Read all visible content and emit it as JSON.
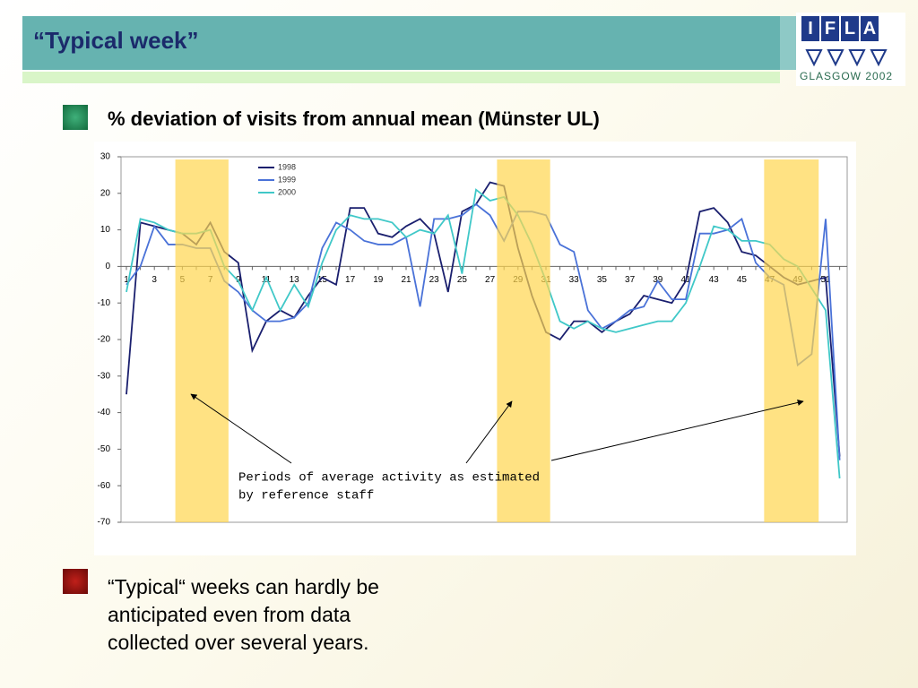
{
  "slide": {
    "title": "“Typical week”",
    "logo": {
      "letters": [
        "I",
        "F",
        "L",
        "A"
      ],
      "caption": "GLASGOW 2002"
    },
    "heading": "% deviation of visits from annual mean (Münster UL)",
    "note_lines": [
      "“Typical“ weeks can hardly be",
      "anticipated even from data",
      "collected over several years."
    ]
  },
  "chart_data": {
    "type": "line",
    "categories": [
      1,
      null,
      3,
      null,
      5,
      null,
      7,
      null,
      9,
      null,
      11,
      null,
      13,
      null,
      15,
      null,
      17,
      null,
      19,
      null,
      21,
      null,
      23,
      null,
      25,
      null,
      27,
      null,
      29,
      null,
      31,
      null,
      33,
      null,
      35,
      null,
      37,
      null,
      39,
      null,
      41,
      null,
      43,
      null,
      45,
      null,
      47,
      null,
      49,
      null,
      51,
      null
    ],
    "series": [
      {
        "name": "1998",
        "color": "#1a1f6e",
        "values": [
          -35,
          12,
          11,
          10,
          9,
          6,
          12,
          4,
          1,
          -23,
          -15,
          -12,
          -14,
          -8,
          -3,
          -5,
          16,
          16,
          9,
          8,
          11,
          13,
          9,
          -7,
          15,
          17,
          23,
          22,
          5,
          -8,
          -18,
          -20,
          -15,
          -15,
          -18,
          -15,
          -13,
          -8,
          -9,
          -10,
          -4,
          15,
          16,
          12,
          4,
          3,
          0,
          -3,
          -5,
          -4,
          -3,
          -52
        ]
      },
      {
        "name": "1999",
        "color": "#4a72d8",
        "values": [
          -5,
          0,
          11,
          6,
          6,
          5,
          5,
          -4,
          -7,
          -12,
          -15,
          -15,
          -14,
          -10,
          5,
          12,
          10,
          7,
          6,
          6,
          8,
          -11,
          13,
          13,
          14,
          17,
          14,
          7,
          15,
          15,
          14,
          6,
          4,
          -12,
          -17,
          -15,
          -12,
          -11,
          -4,
          -9,
          -9,
          9,
          9,
          10,
          13,
          1,
          -3,
          -5,
          -27,
          -24,
          13,
          -53
        ]
      },
      {
        "name": "2000",
        "color": "#40c8c8",
        "values": [
          -7,
          13,
          12,
          10,
          9,
          9,
          10,
          0,
          -4,
          -12,
          -3,
          -12,
          -5,
          -11,
          1,
          10,
          14,
          13,
          13,
          12,
          8,
          10,
          9,
          14,
          -2,
          21,
          18,
          19,
          14,
          6,
          -4,
          -15,
          -17,
          -15,
          -17,
          -18,
          -17,
          -16,
          -15,
          -15,
          -10,
          0,
          11,
          10,
          7,
          7,
          6,
          2,
          0,
          -6,
          -12,
          -58
        ]
      }
    ],
    "ylim": [
      -70,
      30
    ],
    "yticks": [
      30,
      20,
      10,
      0,
      -10,
      -20,
      -30,
      -40,
      -50,
      -60,
      -70
    ],
    "highlight_bands": [
      {
        "start": 4.5,
        "end": 8.3
      },
      {
        "start": 27.5,
        "end": 31.3
      },
      {
        "start": 46.6,
        "end": 50.5
      }
    ],
    "band_color": "#ffd54f",
    "annotation": [
      "Periods of average activity as estimated",
      "by reference staff"
    ],
    "legend": "top-left"
  }
}
